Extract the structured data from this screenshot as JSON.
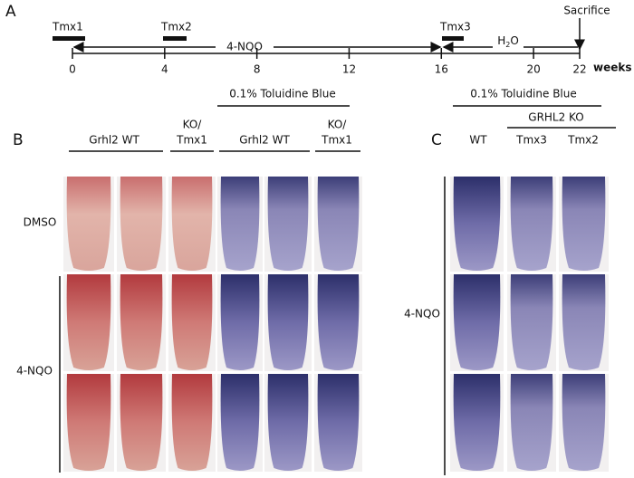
{
  "panel_a": {
    "label": "A",
    "tmx_labels": [
      "Tmx1",
      "Tmx2",
      "Tmx3"
    ],
    "treatment": "4-NQO",
    "water": [
      "H",
      "2",
      "O"
    ],
    "sacrifice": "Sacrifice",
    "ticks": [
      0,
      4,
      8,
      12,
      16,
      20,
      22
    ],
    "unit": "weeks"
  },
  "panel_b": {
    "label": "B",
    "stain": "0.1% Toluidine Blue",
    "columns": [
      "Grhl2 WT",
      "KO/",
      "Tmx1",
      "Grhl2 WT",
      "KO/",
      "Tmx1"
    ],
    "rows": [
      "DMSO",
      "4-NQO"
    ]
  },
  "panel_c": {
    "label": "C",
    "stain": "0.1% Toluidine Blue",
    "group": "GRHL2 KO",
    "columns": [
      "WT",
      "Tmx3",
      "Tmx2"
    ],
    "row": "4-NQO"
  }
}
